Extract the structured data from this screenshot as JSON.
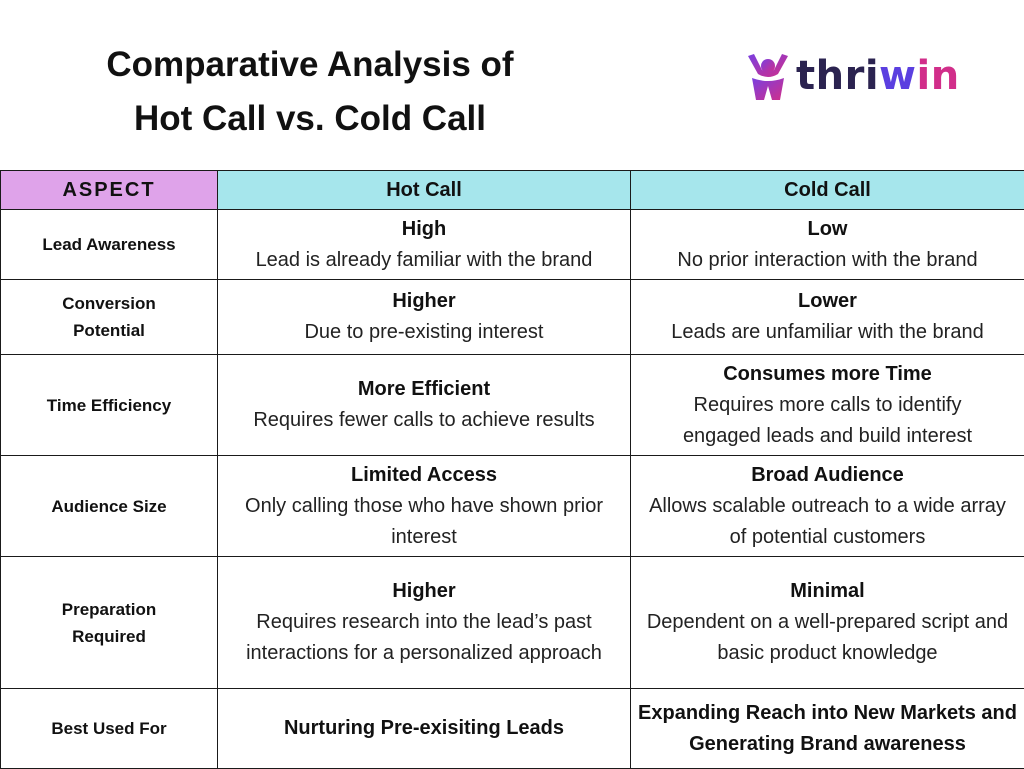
{
  "header": {
    "title_line1": "Comparative Analysis of",
    "title_line2": "Hot Call vs. Cold Call"
  },
  "logo": {
    "icon": "person-arms-up-icon",
    "text_part1": "thri",
    "text_part2": "w",
    "text_part3": "in",
    "colors": {
      "dark": "#2b2350",
      "purple": "#5b3fe0",
      "pink": "#d12e8a"
    }
  },
  "table": {
    "header": {
      "aspect": "ASPECT",
      "hot": "Hot Call",
      "cold": "Cold Call"
    },
    "header_colors": {
      "aspect_bg": "#dfa3ea",
      "call_bg": "#a6e6ec"
    },
    "rows": [
      {
        "aspect": "Lead Awareness",
        "hot_title": "High",
        "hot_desc": "Lead is already familiar with the brand",
        "cold_title": "Low",
        "cold_desc": "No prior interaction with the brand"
      },
      {
        "aspect": "Conversion Potential",
        "hot_title": "Higher",
        "hot_desc": "Due to pre-existing interest",
        "cold_title": "Lower",
        "cold_desc": "Leads are unfamiliar with the brand"
      },
      {
        "aspect": "Time Efficiency",
        "hot_title": "More Efficient",
        "hot_desc": "Requires fewer calls to achieve results",
        "cold_title": "Consumes more Time",
        "cold_desc": "Requires more calls to identify engaged leads and build interest"
      },
      {
        "aspect": "Audience Size",
        "hot_title": "Limited Access",
        "hot_desc": "Only calling those who have shown prior interest",
        "cold_title": "Broad Audience",
        "cold_desc": "Allows scalable outreach to a wide array of potential customers"
      },
      {
        "aspect": "Preparation Required",
        "hot_title": "Higher",
        "hot_desc": "Requires research into the lead’s past interactions for a personalized approach",
        "cold_title": "Minimal",
        "cold_desc": "Dependent on a well-prepared script and basic product knowledge"
      },
      {
        "aspect": "Best Used For",
        "hot_text": "Nurturing Pre-exisiting Leads",
        "cold_text": "Expanding Reach into New Markets and Generating Brand awareness"
      }
    ]
  }
}
